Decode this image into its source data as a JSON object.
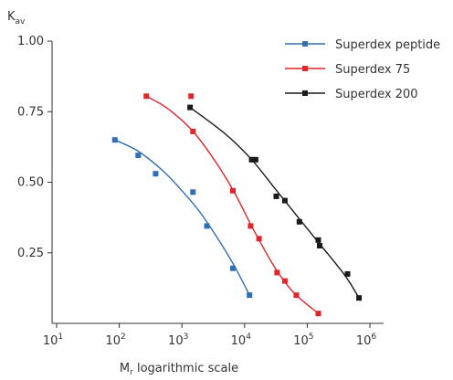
{
  "chart_data": {
    "type": "scatter",
    "ylabel": {
      "main": "K",
      "sub": "av"
    },
    "xlabel": {
      "main": "M",
      "sub": "r",
      "rest": " logarithmic scale"
    },
    "xscale": "log",
    "xlim": [
      10,
      1000000
    ],
    "ylim": [
      0,
      1.0
    ],
    "x_ticks": [
      {
        "value": 10,
        "base": "10",
        "exp": "1"
      },
      {
        "value": 100,
        "base": "10",
        "exp": "2"
      },
      {
        "value": 1000,
        "base": "10",
        "exp": "3"
      },
      {
        "value": 10000,
        "base": "10",
        "exp": "4"
      },
      {
        "value": 100000,
        "base": "10",
        "exp": "5"
      },
      {
        "value": 1000000,
        "base": "10",
        "exp": "6"
      }
    ],
    "y_ticks": [
      {
        "value": 0.25,
        "label": "0.25"
      },
      {
        "value": 0.5,
        "label": "0.50"
      },
      {
        "value": 0.75,
        "label": "0.75"
      },
      {
        "value": 1.0,
        "label": "1.00"
      }
    ],
    "legend_position": "top-right",
    "grid": false,
    "series": [
      {
        "name": "Superdex peptide",
        "color": "#2f6fb5",
        "points": [
          [
            85,
            0.65
          ],
          [
            200,
            0.595
          ],
          [
            380,
            0.53
          ],
          [
            1500,
            0.465
          ],
          [
            2500,
            0.345
          ],
          [
            6500,
            0.195
          ],
          [
            12000,
            0.1
          ]
        ],
        "curve": [
          [
            85,
            0.65
          ],
          [
            200,
            0.61
          ],
          [
            500,
            0.54
          ],
          [
            1000,
            0.47
          ],
          [
            2000,
            0.39
          ],
          [
            4000,
            0.29
          ],
          [
            7000,
            0.2
          ],
          [
            12000,
            0.1
          ]
        ]
      },
      {
        "name": "Superdex 75",
        "color": "#e0262a",
        "points": [
          [
            270,
            0.805
          ],
          [
            1400,
            0.805
          ],
          [
            1500,
            0.68
          ],
          [
            6500,
            0.47
          ],
          [
            12500,
            0.345
          ],
          [
            17000,
            0.3
          ],
          [
            33000,
            0.18
          ],
          [
            44000,
            0.15
          ],
          [
            67000,
            0.1
          ],
          [
            150000,
            0.035
          ]
        ],
        "curve": [
          [
            270,
            0.805
          ],
          [
            600,
            0.76
          ],
          [
            1500,
            0.68
          ],
          [
            3500,
            0.57
          ],
          [
            7000,
            0.46
          ],
          [
            14000,
            0.33
          ],
          [
            30000,
            0.2
          ],
          [
            60000,
            0.11
          ],
          [
            150000,
            0.035
          ]
        ]
      },
      {
        "name": "Superdex 200",
        "color": "#1a1a1a",
        "points": [
          [
            1350,
            0.765
          ],
          [
            13000,
            0.58
          ],
          [
            15000,
            0.58
          ],
          [
            32000,
            0.45
          ],
          [
            44000,
            0.435
          ],
          [
            75000,
            0.36
          ],
          [
            150000,
            0.295
          ],
          [
            158000,
            0.275
          ],
          [
            440000,
            0.175
          ],
          [
            670000,
            0.09
          ]
        ],
        "curve": [
          [
            1350,
            0.765
          ],
          [
            5000,
            0.67
          ],
          [
            13000,
            0.58
          ],
          [
            30000,
            0.48
          ],
          [
            75000,
            0.37
          ],
          [
            160000,
            0.28
          ],
          [
            400000,
            0.17
          ],
          [
            670000,
            0.09
          ]
        ]
      }
    ]
  }
}
